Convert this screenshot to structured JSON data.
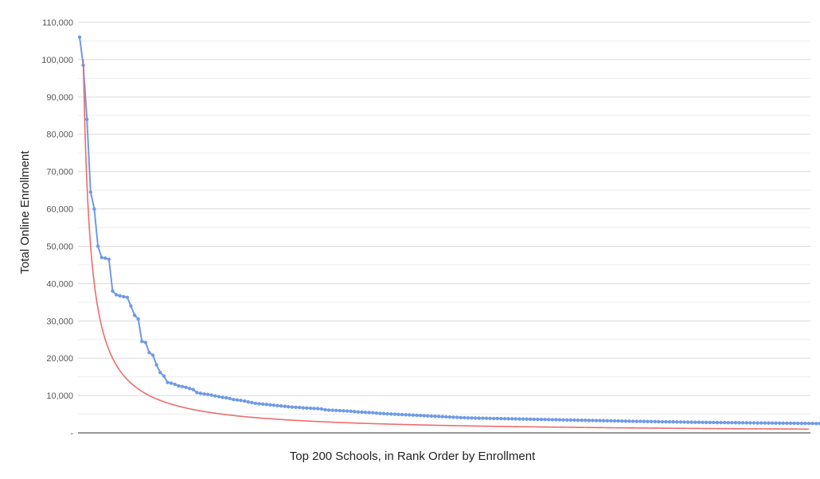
{
  "chart_data": {
    "type": "line",
    "title": "",
    "xlabel": "Top 200 Schools, in Rank Order by Enrollment",
    "ylabel": "Total Online Enrollment",
    "ylim": [
      0,
      110000
    ],
    "xlim": [
      1,
      200
    ],
    "yticks": [
      0,
      10000,
      20000,
      30000,
      40000,
      50000,
      60000,
      70000,
      80000,
      90000,
      100000,
      110000
    ],
    "ytick_labels": [
      "-",
      "10,000",
      "20,000",
      "30,000",
      "40,000",
      "50,000",
      "60,000",
      "70,000",
      "80,000",
      "90,000",
      "100,000",
      "110,000"
    ],
    "grid": "horizontal",
    "legend": "none",
    "series": [
      {
        "color": "#6f9ae6",
        "marker": "circle",
        "values": [
          106000,
          98500,
          84000,
          64500,
          60000,
          50000,
          47000,
          46800,
          46500,
          38000,
          37000,
          36700,
          36500,
          36300,
          34000,
          31500,
          30500,
          24500,
          24200,
          21500,
          20800,
          18200,
          16200,
          15200,
          13500,
          13300,
          13000,
          12600,
          12400,
          12200,
          11900,
          11600,
          10800,
          10600,
          10400,
          10300,
          10100,
          9900,
          9700,
          9500,
          9400,
          9200,
          8900,
          8800,
          8700,
          8500,
          8300,
          8100,
          7900,
          7800,
          7700,
          7600,
          7500,
          7400,
          7300,
          7200,
          7100,
          7000,
          6900,
          6850,
          6800,
          6700,
          6650,
          6600,
          6550,
          6500,
          6400,
          6200,
          6100,
          6050,
          6000,
          5950,
          5900,
          5850,
          5800,
          5700,
          5600,
          5550,
          5500,
          5450,
          5400,
          5300,
          5200,
          5150,
          5100,
          5050,
          5000,
          4950,
          4900,
          4850,
          4800,
          4750,
          4700,
          4650,
          4600,
          4550,
          4500,
          4450,
          4400,
          4350,
          4300,
          4250,
          4200,
          4150,
          4100,
          4050,
          4000,
          3980,
          3960,
          3940,
          3920,
          3900,
          3880,
          3860,
          3840,
          3820,
          3800,
          3780,
          3760,
          3740,
          3720,
          3700,
          3680,
          3660,
          3640,
          3620,
          3600,
          3580,
          3560,
          3540,
          3520,
          3500,
          3480,
          3460,
          3440,
          3420,
          3400,
          3380,
          3360,
          3340,
          3320,
          3300,
          3280,
          3260,
          3240,
          3220,
          3200,
          3180,
          3160,
          3140,
          3120,
          3100,
          3085,
          3070,
          3055,
          3040,
          3025,
          3010,
          2995,
          2980,
          2965,
          2950,
          2935,
          2920,
          2905,
          2890,
          2875,
          2860,
          2845,
          2830,
          2815,
          2800,
          2790,
          2780,
          2770,
          2760,
          2750,
          2740,
          2730,
          2720,
          2710,
          2700,
          2690,
          2680,
          2670,
          2660,
          2650,
          2640,
          2630,
          2620,
          2610,
          2600,
          2590,
          2580,
          2570,
          2560,
          2550,
          2540,
          2530,
          2520,
          2510,
          2500,
          2490,
          2480
        ]
      },
      {
        "color": "#ee6c6c",
        "marker": "none",
        "fit": "power",
        "coefficient": 200000,
        "exponent": -1.0,
        "x_start": 2,
        "x_end": 200
      }
    ]
  }
}
